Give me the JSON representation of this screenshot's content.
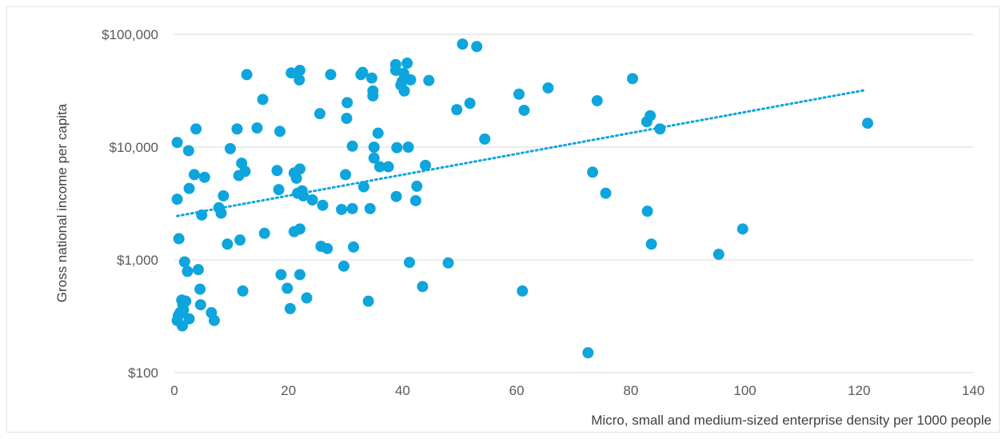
{
  "chart_data": {
    "type": "scatter",
    "title": "",
    "xlabel": "Micro, small and medium-sized enterprise density per 1000 people",
    "ylabel": "Gross national income per capita",
    "xlim": [
      0,
      140
    ],
    "ylim": [
      100,
      100000
    ],
    "yscale": "log",
    "x_ticks": [
      "0",
      "20",
      "40",
      "60",
      "80",
      "100",
      "120",
      "140"
    ],
    "y_ticks": [
      "$100",
      "$1,000",
      "$10,000",
      "$100,000"
    ],
    "grid": "horizontal",
    "legend": "none",
    "marker_color": "#0ea5dd",
    "trendline": {
      "style": "dotted",
      "x": [
        0.5,
        121
      ],
      "y": [
        2450,
        32000
      ]
    },
    "points": [
      {
        "x": 0.5,
        "y": 11000
      },
      {
        "x": 0.5,
        "y": 3450
      },
      {
        "x": 0.8,
        "y": 1540
      },
      {
        "x": 0.5,
        "y": 290
      },
      {
        "x": 0.7,
        "y": 320
      },
      {
        "x": 1,
        "y": 340
      },
      {
        "x": 1.3,
        "y": 440
      },
      {
        "x": 1.5,
        "y": 400
      },
      {
        "x": 1.6,
        "y": 360
      },
      {
        "x": 1.4,
        "y": 260
      },
      {
        "x": 1.8,
        "y": 960
      },
      {
        "x": 2,
        "y": 430
      },
      {
        "x": 2.3,
        "y": 790
      },
      {
        "x": 2.6,
        "y": 300
      },
      {
        "x": 2.5,
        "y": 9300
      },
      {
        "x": 2.6,
        "y": 4300
      },
      {
        "x": 3.5,
        "y": 5700
      },
      {
        "x": 3.8,
        "y": 14500
      },
      {
        "x": 4.2,
        "y": 820
      },
      {
        "x": 4.5,
        "y": 550
      },
      {
        "x": 4.6,
        "y": 400
      },
      {
        "x": 4.8,
        "y": 2500
      },
      {
        "x": 5.3,
        "y": 5400
      },
      {
        "x": 6.5,
        "y": 340
      },
      {
        "x": 7,
        "y": 290
      },
      {
        "x": 7.8,
        "y": 2900
      },
      {
        "x": 8.2,
        "y": 2600
      },
      {
        "x": 8.6,
        "y": 3700
      },
      {
        "x": 9.3,
        "y": 1380
      },
      {
        "x": 9.8,
        "y": 9700
      },
      {
        "x": 11,
        "y": 14500
      },
      {
        "x": 11.3,
        "y": 5600
      },
      {
        "x": 11.5,
        "y": 1500
      },
      {
        "x": 11.8,
        "y": 7200
      },
      {
        "x": 12,
        "y": 530
      },
      {
        "x": 12.4,
        "y": 6100
      },
      {
        "x": 12.7,
        "y": 44000
      },
      {
        "x": 14.5,
        "y": 14800
      },
      {
        "x": 15.5,
        "y": 26500
      },
      {
        "x": 15.8,
        "y": 1720
      },
      {
        "x": 18,
        "y": 6200
      },
      {
        "x": 18.3,
        "y": 4200
      },
      {
        "x": 18.5,
        "y": 13800
      },
      {
        "x": 18.7,
        "y": 740
      },
      {
        "x": 19.8,
        "y": 560
      },
      {
        "x": 20.3,
        "y": 370
      },
      {
        "x": 20.5,
        "y": 45500
      },
      {
        "x": 21,
        "y": 5900
      },
      {
        "x": 21,
        "y": 1780
      },
      {
        "x": 21.4,
        "y": 5300
      },
      {
        "x": 21.6,
        "y": 3900
      },
      {
        "x": 21.9,
        "y": 39500
      },
      {
        "x": 22,
        "y": 48000
      },
      {
        "x": 22,
        "y": 6400
      },
      {
        "x": 22,
        "y": 1880
      },
      {
        "x": 22,
        "y": 740
      },
      {
        "x": 22.4,
        "y": 4100
      },
      {
        "x": 22.6,
        "y": 3700
      },
      {
        "x": 23.2,
        "y": 460
      },
      {
        "x": 24.2,
        "y": 3400
      },
      {
        "x": 25.5,
        "y": 19800
      },
      {
        "x": 25.7,
        "y": 1320
      },
      {
        "x": 26,
        "y": 3050
      },
      {
        "x": 26.8,
        "y": 1260
      },
      {
        "x": 27.4,
        "y": 44000
      },
      {
        "x": 29.3,
        "y": 2800
      },
      {
        "x": 29.7,
        "y": 880
      },
      {
        "x": 30,
        "y": 5700
      },
      {
        "x": 30.2,
        "y": 18000
      },
      {
        "x": 30.3,
        "y": 24800
      },
      {
        "x": 31.2,
        "y": 10200
      },
      {
        "x": 31.2,
        "y": 2850
      },
      {
        "x": 31.4,
        "y": 1300
      },
      {
        "x": 32.7,
        "y": 44000
      },
      {
        "x": 33,
        "y": 46000
      },
      {
        "x": 33.2,
        "y": 4450
      },
      {
        "x": 34,
        "y": 430
      },
      {
        "x": 34.3,
        "y": 2850
      },
      {
        "x": 34.6,
        "y": 41000
      },
      {
        "x": 34.8,
        "y": 31500
      },
      {
        "x": 34.8,
        "y": 28500
      },
      {
        "x": 35,
        "y": 10000
      },
      {
        "x": 35,
        "y": 8000
      },
      {
        "x": 35.7,
        "y": 13300
      },
      {
        "x": 36,
        "y": 6700
      },
      {
        "x": 37.5,
        "y": 6700
      },
      {
        "x": 38.8,
        "y": 54000
      },
      {
        "x": 38.8,
        "y": 48000
      },
      {
        "x": 38.9,
        "y": 3650
      },
      {
        "x": 39,
        "y": 9900
      },
      {
        "x": 39.7,
        "y": 35500
      },
      {
        "x": 39.9,
        "y": 38000
      },
      {
        "x": 40.2,
        "y": 45000
      },
      {
        "x": 40.3,
        "y": 31500
      },
      {
        "x": 40.8,
        "y": 55500
      },
      {
        "x": 41,
        "y": 10000
      },
      {
        "x": 41.2,
        "y": 950
      },
      {
        "x": 41.4,
        "y": 39500
      },
      {
        "x": 42.3,
        "y": 3350
      },
      {
        "x": 42.5,
        "y": 4500
      },
      {
        "x": 43.5,
        "y": 580
      },
      {
        "x": 44,
        "y": 6900
      },
      {
        "x": 44.6,
        "y": 39000
      },
      {
        "x": 48,
        "y": 940
      },
      {
        "x": 49.5,
        "y": 21500
      },
      {
        "x": 50.5,
        "y": 82000
      },
      {
        "x": 51.8,
        "y": 24500
      },
      {
        "x": 53,
        "y": 78000
      },
      {
        "x": 54.4,
        "y": 11800
      },
      {
        "x": 60.4,
        "y": 29500
      },
      {
        "x": 61,
        "y": 530
      },
      {
        "x": 61.3,
        "y": 21200
      },
      {
        "x": 65.5,
        "y": 33500
      },
      {
        "x": 72.5,
        "y": 150
      },
      {
        "x": 73.3,
        "y": 6000
      },
      {
        "x": 74.1,
        "y": 25800
      },
      {
        "x": 75.6,
        "y": 3900
      },
      {
        "x": 80.3,
        "y": 40500
      },
      {
        "x": 82.8,
        "y": 16800
      },
      {
        "x": 82.9,
        "y": 2700
      },
      {
        "x": 83.4,
        "y": 19000
      },
      {
        "x": 83.6,
        "y": 1380
      },
      {
        "x": 85.1,
        "y": 14500
      },
      {
        "x": 95.4,
        "y": 1120
      },
      {
        "x": 99.6,
        "y": 1880
      },
      {
        "x": 121.5,
        "y": 16300
      }
    ]
  }
}
